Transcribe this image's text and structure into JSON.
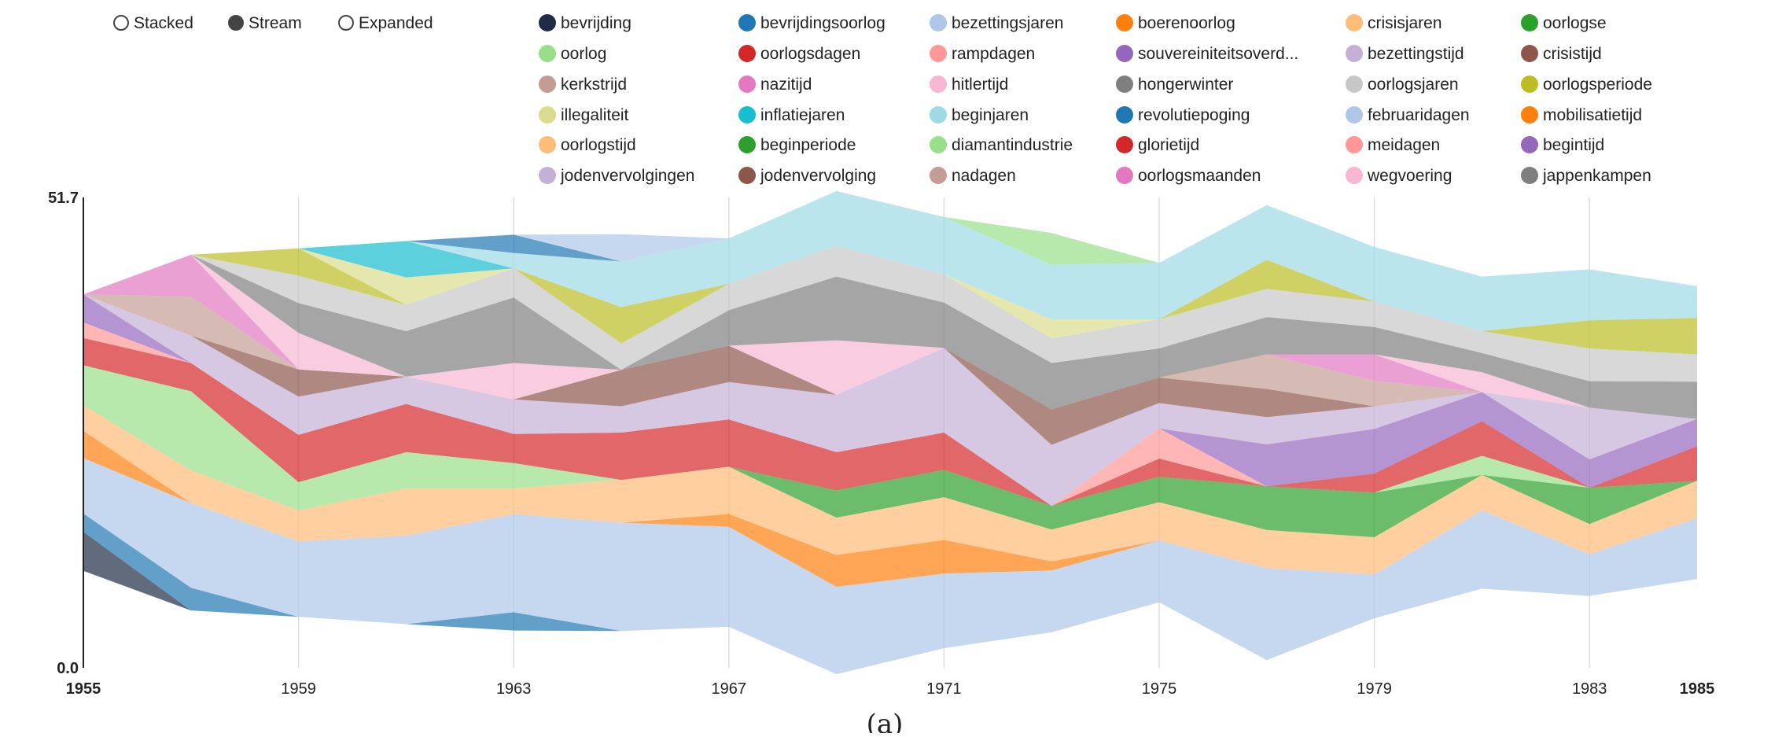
{
  "controls": [
    {
      "label": "Stacked",
      "selected": false
    },
    {
      "label": "Stream",
      "selected": true
    },
    {
      "label": "Expanded",
      "selected": false
    }
  ],
  "caption": "(a)",
  "chart_data": {
    "type": "area",
    "layout": "stream",
    "x": [
      1955,
      1957,
      1959,
      1961,
      1963,
      1965,
      1967,
      1969,
      1971,
      1973,
      1975,
      1977,
      1979,
      1981,
      1983,
      1985
    ],
    "xticks": [
      1955,
      1959,
      1963,
      1967,
      1971,
      1975,
      1979,
      1983,
      1985
    ],
    "xlim": [
      1955,
      1985
    ],
    "ylim": [
      0.0,
      51.7
    ],
    "yticks": [
      "0.0",
      "51.7"
    ],
    "grid": true,
    "legend_position": "top",
    "series": [
      {
        "name": "bevrijding",
        "color": "#1f2c44",
        "values": [
          4.3,
          0,
          0,
          0,
          0,
          0,
          0,
          0,
          0,
          0,
          0,
          0,
          0,
          0,
          0,
          0
        ]
      },
      {
        "name": "bevrijdingsoorlog",
        "color": "#1f77b4",
        "values": [
          2.0,
          2.5,
          0,
          0,
          2.0,
          0,
          0,
          0,
          0,
          0,
          0,
          0,
          0,
          0,
          0,
          0
        ]
      },
      {
        "name": "bezettingsjaren",
        "color": "#aec7e8",
        "values": [
          6.1,
          9.3,
          8.3,
          9.7,
          10.8,
          11.9,
          11.0,
          9.6,
          8.2,
          6.8,
          6.8,
          10.1,
          4.8,
          8.6,
          4.6,
          6.7
        ]
      },
      {
        "name": "boerenoorlog",
        "color": "#ff7f0e",
        "values": [
          3.0,
          0,
          0,
          0,
          0,
          0,
          1.4,
          3.5,
          3.7,
          1.0,
          0,
          0,
          0,
          0,
          0,
          0
        ]
      },
      {
        "name": "crisisjaren",
        "color": "#ffbb78",
        "values": [
          2.8,
          3.6,
          3.4,
          5.2,
          2.8,
          4.7,
          5.2,
          4.1,
          4.7,
          3.5,
          4.2,
          4.2,
          4.1,
          3.9,
          3.3,
          4.1
        ]
      },
      {
        "name": "oorlogse",
        "color": "#2ca02c",
        "values": [
          0,
          0,
          0,
          0,
          0,
          0,
          0,
          3.0,
          3.0,
          2.6,
          2.8,
          4.8,
          4.9,
          0,
          4.0,
          0
        ]
      },
      {
        "name": "oorlog",
        "color": "#98df8a",
        "values": [
          4.4,
          8.7,
          3.1,
          4.0,
          2.8,
          0,
          0,
          0,
          0,
          0,
          0,
          0,
          0,
          2.1,
          0,
          0
        ]
      },
      {
        "name": "oorlogsdagen",
        "color": "#d62728",
        "values": [
          3.0,
          3.1,
          5.2,
          5.3,
          3.2,
          5.2,
          5.2,
          4.2,
          4.1,
          0,
          2.0,
          0,
          2.1,
          3.8,
          0,
          3.8
        ]
      },
      {
        "name": "rampdagen",
        "color": "#ff9896",
        "values": [
          1.7,
          0,
          0,
          0,
          0,
          0,
          0,
          0,
          0,
          0,
          3.3,
          0,
          0,
          0,
          0,
          0
        ]
      },
      {
        "name": "souvereiniteitsoverd...",
        "color": "#9467bd",
        "values": [
          3.1,
          0,
          0,
          0,
          0,
          0,
          0,
          0,
          0,
          0,
          0,
          4.6,
          4.9,
          3.2,
          3.1,
          3.0
        ]
      },
      {
        "name": "bezettingstijd",
        "color": "#c5b0d5",
        "values": [
          0,
          3.0,
          4.2,
          3.0,
          3.8,
          2.9,
          4.1,
          6.3,
          9.3,
          6.7,
          2.8,
          3.0,
          2.5,
          0,
          5.7,
          0
        ]
      },
      {
        "name": "crisistijd",
        "color": "#8c564b",
        "values": [
          0,
          0,
          3.0,
          0,
          0,
          4.0,
          4.0,
          0,
          0,
          3.9,
          2.8,
          3.1,
          0,
          0,
          0,
          0
        ]
      },
      {
        "name": "kerkstrijd",
        "color": "#c49c94",
        "values": [
          0,
          4.3,
          0,
          0,
          0,
          0,
          0,
          0,
          0,
          0,
          0,
          3.8,
          2.8,
          0,
          0,
          0
        ]
      },
      {
        "name": "nazitijd",
        "color": "#e377c2",
        "values": [
          0,
          4.6,
          0,
          0,
          0,
          0,
          0,
          0,
          0,
          0,
          0,
          0,
          2.9,
          0,
          0,
          0
        ]
      },
      {
        "name": "hitlertijd",
        "color": "#f7b6d2",
        "values": [
          0,
          0,
          4.0,
          0,
          4.0,
          0,
          0,
          6.0,
          0,
          0,
          0,
          0,
          0,
          2.2,
          0,
          0
        ]
      },
      {
        "name": "hongerwinter",
        "color": "#7f7f7f",
        "values": [
          0,
          0,
          3.3,
          5.0,
          7.2,
          0,
          3.9,
          7.0,
          5.0,
          5.1,
          3.2,
          4.1,
          3.0,
          2.1,
          2.9,
          4.1
        ]
      },
      {
        "name": "oorlogsjaren",
        "color": "#c7c7c7",
        "values": [
          0,
          0,
          3.0,
          2.9,
          3.2,
          2.9,
          2.9,
          3.4,
          3.1,
          2.7,
          3.2,
          3.1,
          2.8,
          2.4,
          3.6,
          3.0
        ]
      },
      {
        "name": "oorlogsperiode",
        "color": "#bcbd22",
        "values": [
          0,
          0,
          3.0,
          0,
          0,
          4.0,
          0,
          0,
          0,
          0,
          0,
          3.2,
          0,
          0,
          3.1,
          4.0
        ]
      },
      {
        "name": "illegaliteit",
        "color": "#dbdb8d",
        "values": [
          0,
          0,
          0,
          3.0,
          0,
          0,
          0,
          0,
          0,
          2.1,
          0,
          0,
          0,
          0,
          0,
          0
        ]
      },
      {
        "name": "inflatiejaren",
        "color": "#17becf",
        "values": [
          0,
          0,
          0,
          4.0,
          0,
          0,
          0,
          0,
          0,
          0,
          0,
          0,
          0,
          0,
          0,
          0
        ]
      },
      {
        "name": "beginjaren",
        "color": "#9edae5",
        "values": [
          0,
          0,
          0,
          0,
          1.7,
          5.0,
          5.0,
          6.0,
          6.3,
          6.0,
          6.2,
          6.0,
          6.0,
          6.0,
          5.6,
          3.5
        ]
      },
      {
        "name": "revolutiepoging",
        "color": "#1f77b4",
        "values": [
          0,
          0,
          0,
          0,
          2.0,
          0,
          0,
          0,
          0,
          0,
          0,
          0,
          0,
          0,
          0,
          0
        ]
      },
      {
        "name": "februaridagen",
        "color": "#aec7e8",
        "values": [
          0,
          0,
          0,
          0,
          0,
          3.0,
          0,
          0,
          0,
          0,
          0,
          0,
          0,
          0,
          0,
          0
        ]
      },
      {
        "name": "mobilisatietijd",
        "color": "#ff7f0e",
        "values": [
          0,
          0,
          0,
          0,
          0,
          0,
          0,
          0,
          0,
          0,
          0,
          0,
          0,
          0,
          0,
          0
        ]
      },
      {
        "name": "oorlogstijd",
        "color": "#ffbb78",
        "values": [
          0,
          0,
          0,
          0,
          0,
          0,
          0,
          0,
          0,
          0,
          0,
          0,
          0,
          0,
          0,
          0
        ]
      },
      {
        "name": "beginperiode",
        "color": "#2ca02c",
        "values": [
          0,
          0,
          0,
          0,
          0,
          0,
          0,
          0,
          0,
          0,
          0,
          0,
          0,
          0,
          0,
          0
        ]
      },
      {
        "name": "diamantindustrie",
        "color": "#98df8a",
        "values": [
          0,
          0,
          0,
          0,
          0,
          0,
          0,
          0,
          0,
          3.5,
          0,
          0,
          0,
          0,
          0,
          0
        ]
      },
      {
        "name": "glorietijd",
        "color": "#d62728",
        "values": [
          0,
          0,
          0,
          0,
          0,
          0,
          0,
          0,
          0,
          0,
          0,
          0,
          0,
          0,
          0,
          0
        ]
      },
      {
        "name": "meidagen",
        "color": "#ff9896",
        "values": [
          0,
          0,
          0,
          0,
          0,
          0,
          0,
          0,
          0,
          0,
          0,
          0,
          0,
          0,
          0,
          0
        ]
      },
      {
        "name": "begintijd",
        "color": "#9467bd",
        "values": [
          0,
          0,
          0,
          0,
          0,
          0,
          0,
          0,
          0,
          0,
          0,
          0,
          0,
          0,
          0,
          0
        ]
      },
      {
        "name": "jodenvervolgingen",
        "color": "#c5b0d5",
        "values": [
          0,
          0,
          0,
          0,
          0,
          0,
          0,
          0,
          0,
          0,
          0,
          0,
          0,
          0,
          0,
          0
        ]
      },
      {
        "name": "jodenvervolging",
        "color": "#8c564b",
        "values": [
          0,
          0,
          0,
          0,
          0,
          0,
          0,
          0,
          0,
          0,
          0,
          0,
          0,
          0,
          0,
          0
        ]
      },
      {
        "name": "nadagen",
        "color": "#c49c94",
        "values": [
          0,
          0,
          0,
          0,
          0,
          0,
          0,
          0,
          0,
          0,
          0,
          0,
          0,
          0,
          0,
          0
        ]
      },
      {
        "name": "oorlogsmaanden",
        "color": "#e377c2",
        "values": [
          0,
          0,
          0,
          0,
          0,
          0,
          0,
          0,
          0,
          0,
          0,
          0,
          0,
          0,
          0,
          0
        ]
      },
      {
        "name": "wegvoering",
        "color": "#f7b6d2",
        "values": [
          0,
          0,
          0,
          0,
          0,
          0,
          0,
          0,
          0,
          0,
          0,
          0,
          0,
          0,
          0,
          0
        ]
      },
      {
        "name": "jappenkampen",
        "color": "#7f7f7f",
        "values": [
          0,
          0,
          0,
          0,
          0,
          0,
          0,
          0,
          0,
          0,
          0,
          0,
          0,
          0,
          0,
          0
        ]
      }
    ]
  }
}
